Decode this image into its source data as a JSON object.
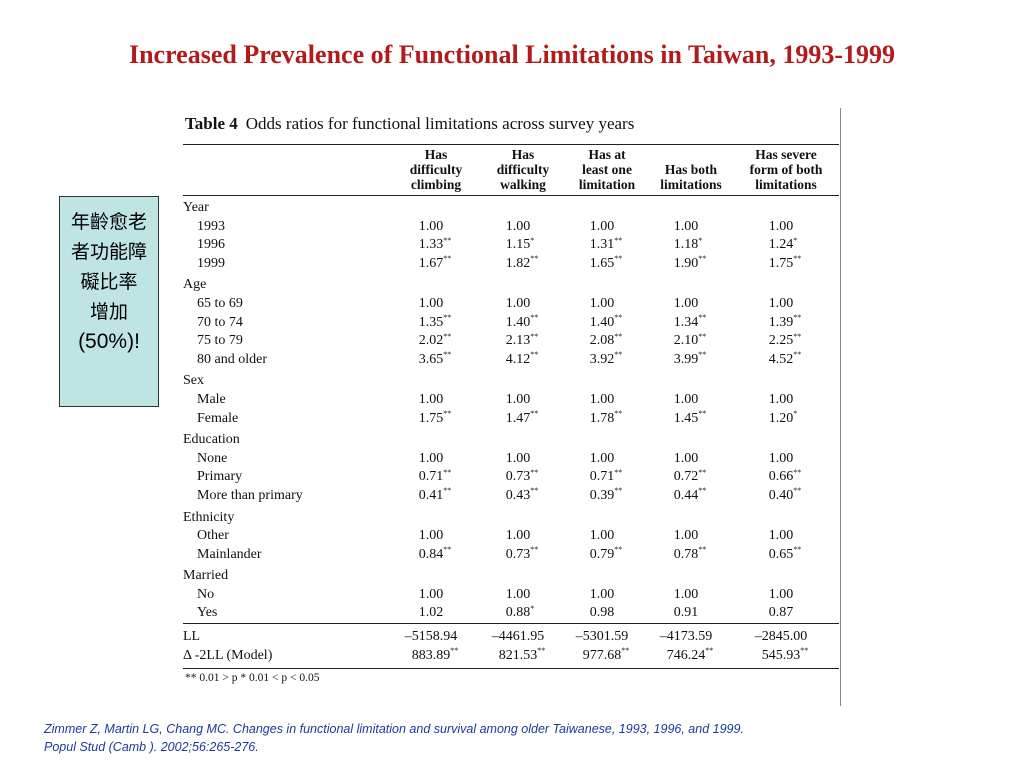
{
  "title": "Increased Prevalence of Functional Limitations in Taiwan, 1993-1999",
  "side_note": {
    "lines": [
      "年齡愈老",
      "者功能障",
      "礙比率",
      "增加",
      "(50%)!"
    ]
  },
  "table": {
    "caption_prefix": "Table 4",
    "caption": "Odds ratios for functional limitations across survey years",
    "headers": [
      "",
      "Has difficulty climbing",
      "Has difficulty walking",
      "Has at least one limitation",
      "Has both limitations",
      "Has severe form of both limitations"
    ],
    "header_lines": [
      [],
      [
        "Has",
        "difficulty",
        "climbing"
      ],
      [
        "Has",
        "difficulty",
        "walking"
      ],
      [
        "Has at",
        "least one",
        "limitation"
      ],
      [
        "Has both",
        "limitations"
      ],
      [
        "Has severe",
        "form of both",
        "limitations"
      ]
    ],
    "rows": [
      {
        "type": "section",
        "label": "Year"
      },
      {
        "type": "row",
        "label": "1993",
        "cells": [
          {
            "v": "1.00",
            "s": ""
          },
          {
            "v": "1.00",
            "s": ""
          },
          {
            "v": "1.00",
            "s": ""
          },
          {
            "v": "1.00",
            "s": ""
          },
          {
            "v": "1.00",
            "s": ""
          }
        ]
      },
      {
        "type": "row",
        "label": "1996",
        "cells": [
          {
            "v": "1.33",
            "s": "**"
          },
          {
            "v": "1.15",
            "s": "*"
          },
          {
            "v": "1.31",
            "s": "**"
          },
          {
            "v": "1.18",
            "s": "*"
          },
          {
            "v": "1.24",
            "s": "*"
          }
        ]
      },
      {
        "type": "row",
        "label": "1999",
        "cells": [
          {
            "v": "1.67",
            "s": "**"
          },
          {
            "v": "1.82",
            "s": "**"
          },
          {
            "v": "1.65",
            "s": "**"
          },
          {
            "v": "1.90",
            "s": "**"
          },
          {
            "v": "1.75",
            "s": "**"
          }
        ]
      },
      {
        "type": "section",
        "label": "Age"
      },
      {
        "type": "row",
        "label": "65 to 69",
        "cells": [
          {
            "v": "1.00",
            "s": ""
          },
          {
            "v": "1.00",
            "s": ""
          },
          {
            "v": "1.00",
            "s": ""
          },
          {
            "v": "1.00",
            "s": ""
          },
          {
            "v": "1.00",
            "s": ""
          }
        ]
      },
      {
        "type": "row",
        "label": "70 to 74",
        "cells": [
          {
            "v": "1.35",
            "s": "**"
          },
          {
            "v": "1.40",
            "s": "**"
          },
          {
            "v": "1.40",
            "s": "**"
          },
          {
            "v": "1.34",
            "s": "**"
          },
          {
            "v": "1.39",
            "s": "**"
          }
        ]
      },
      {
        "type": "row",
        "label": "75 to 79",
        "cells": [
          {
            "v": "2.02",
            "s": "**"
          },
          {
            "v": "2.13",
            "s": "**"
          },
          {
            "v": "2.08",
            "s": "**"
          },
          {
            "v": "2.10",
            "s": "**"
          },
          {
            "v": "2.25",
            "s": "**"
          }
        ]
      },
      {
        "type": "row",
        "label": "80 and older",
        "cells": [
          {
            "v": "3.65",
            "s": "**"
          },
          {
            "v": "4.12",
            "s": "**"
          },
          {
            "v": "3.92",
            "s": "**"
          },
          {
            "v": "3.99",
            "s": "**"
          },
          {
            "v": "4.52",
            "s": "**"
          }
        ]
      },
      {
        "type": "section",
        "label": "Sex"
      },
      {
        "type": "row",
        "label": "Male",
        "cells": [
          {
            "v": "1.00",
            "s": ""
          },
          {
            "v": "1.00",
            "s": ""
          },
          {
            "v": "1.00",
            "s": ""
          },
          {
            "v": "1.00",
            "s": ""
          },
          {
            "v": "1.00",
            "s": ""
          }
        ]
      },
      {
        "type": "row",
        "label": "Female",
        "cells": [
          {
            "v": "1.75",
            "s": "**"
          },
          {
            "v": "1.47",
            "s": "**"
          },
          {
            "v": "1.78",
            "s": "**"
          },
          {
            "v": "1.45",
            "s": "**"
          },
          {
            "v": "1.20",
            "s": "*"
          }
        ]
      },
      {
        "type": "section",
        "label": "Education"
      },
      {
        "type": "row",
        "label": "None",
        "cells": [
          {
            "v": "1.00",
            "s": ""
          },
          {
            "v": "1.00",
            "s": ""
          },
          {
            "v": "1.00",
            "s": ""
          },
          {
            "v": "1.00",
            "s": ""
          },
          {
            "v": "1.00",
            "s": ""
          }
        ]
      },
      {
        "type": "row",
        "label": "Primary",
        "cells": [
          {
            "v": "0.71",
            "s": "**"
          },
          {
            "v": "0.73",
            "s": "**"
          },
          {
            "v": "0.71",
            "s": "**"
          },
          {
            "v": "0.72",
            "s": "**"
          },
          {
            "v": "0.66",
            "s": "**"
          }
        ]
      },
      {
        "type": "row",
        "label": "More than primary",
        "cells": [
          {
            "v": "0.41",
            "s": "**"
          },
          {
            "v": "0.43",
            "s": "**"
          },
          {
            "v": "0.39",
            "s": "**"
          },
          {
            "v": "0.44",
            "s": "**"
          },
          {
            "v": "0.40",
            "s": "**"
          }
        ]
      },
      {
        "type": "section",
        "label": "Ethnicity"
      },
      {
        "type": "row",
        "label": "Other",
        "cells": [
          {
            "v": "1.00",
            "s": ""
          },
          {
            "v": "1.00",
            "s": ""
          },
          {
            "v": "1.00",
            "s": ""
          },
          {
            "v": "1.00",
            "s": ""
          },
          {
            "v": "1.00",
            "s": ""
          }
        ]
      },
      {
        "type": "row",
        "label": "Mainlander",
        "cells": [
          {
            "v": "0.84",
            "s": "**"
          },
          {
            "v": "0.73",
            "s": "**"
          },
          {
            "v": "0.79",
            "s": "**"
          },
          {
            "v": "0.78",
            "s": "**"
          },
          {
            "v": "0.65",
            "s": "**"
          }
        ]
      },
      {
        "type": "section",
        "label": "Married"
      },
      {
        "type": "row",
        "label": "No",
        "cells": [
          {
            "v": "1.00",
            "s": ""
          },
          {
            "v": "1.00",
            "s": ""
          },
          {
            "v": "1.00",
            "s": ""
          },
          {
            "v": "1.00",
            "s": ""
          },
          {
            "v": "1.00",
            "s": ""
          }
        ]
      },
      {
        "type": "row",
        "label": "Yes",
        "cells": [
          {
            "v": "1.02",
            "s": ""
          },
          {
            "v": "0.88",
            "s": "*"
          },
          {
            "v": "0.98",
            "s": ""
          },
          {
            "v": "0.91",
            "s": ""
          },
          {
            "v": "0.87",
            "s": ""
          }
        ]
      },
      {
        "type": "stat",
        "label": "LL",
        "cells": [
          {
            "v": "–5158.94",
            "s": ""
          },
          {
            "v": "–4461.95",
            "s": ""
          },
          {
            "v": "–5301.59",
            "s": ""
          },
          {
            "v": "–4173.59",
            "s": ""
          },
          {
            "v": "–2845.00",
            "s": ""
          }
        ]
      },
      {
        "type": "stat",
        "label": "Δ -2LL (Model)",
        "cells": [
          {
            "v": "883.89",
            "s": "**"
          },
          {
            "v": "821.53",
            "s": "**"
          },
          {
            "v": "977.68",
            "s": "**"
          },
          {
            "v": "746.24",
            "s": "**"
          },
          {
            "v": "545.93",
            "s": "**"
          }
        ]
      }
    ],
    "footnote": "** 0.01 > p     * 0.01 < p < 0.05"
  },
  "citation": {
    "line1": "Zimmer Z, Martin LG, Chang MC. Changes in functional limitation and survival among older Taiwanese, 1993, 1996, and 1999.",
    "line2": "Popul Stud (Camb ). 2002;56:265-276."
  },
  "colors": {
    "title": "#b31b1b",
    "side_box_bg": "#bfe4e4",
    "citation": "#1a3a9e"
  }
}
